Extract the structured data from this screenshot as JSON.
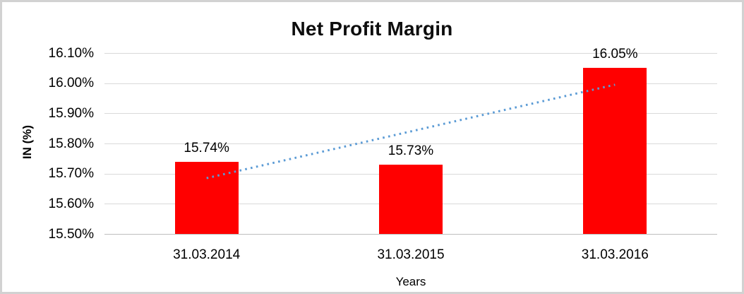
{
  "chart_data": {
    "type": "bar",
    "title": "Net Profit Margin",
    "xlabel": "Years",
    "ylabel": "IN (%)",
    "categories": [
      "31.03.2014",
      "31.03.2015",
      "31.03.2016"
    ],
    "values": [
      15.74,
      15.73,
      16.05
    ],
    "data_labels": [
      "15.74%",
      "15.73%",
      "16.05%"
    ],
    "ylim": [
      15.5,
      16.1
    ],
    "y_tick_values": [
      16.1,
      16.0,
      15.9,
      15.8,
      15.7,
      15.6,
      15.5
    ],
    "y_tick_labels": [
      "16.10%",
      "16.00%",
      "15.90%",
      "15.80%",
      "15.70%",
      "15.60%",
      "15.50%"
    ],
    "grid": true,
    "legend_position": "none",
    "bar_color": "#ff0000",
    "gridline_color": "#d9d9d9",
    "axis_line_color": "#bfbfbf",
    "trendline": {
      "type": "linear",
      "style": "dotted",
      "color": "#5b9bd5"
    }
  }
}
